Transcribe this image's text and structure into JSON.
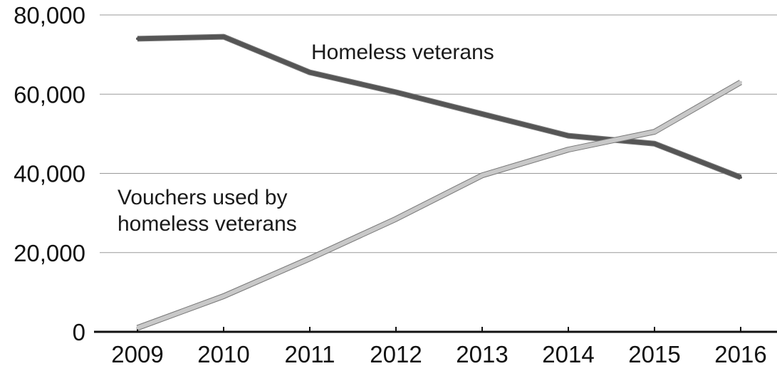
{
  "chart_data": {
    "type": "line",
    "title": "",
    "xlabel": "",
    "ylabel": "",
    "categories": [
      "2009",
      "2010",
      "2011",
      "2012",
      "2013",
      "2014",
      "2015",
      "2016"
    ],
    "y_ticks": [
      "0",
      "20,000",
      "40,000",
      "60,000",
      "80,000"
    ],
    "ylim": [
      0,
      80000
    ],
    "grid": true,
    "series": [
      {
        "name": "Homeless veterans",
        "label_lines": [
          "Homeless veterans"
        ],
        "color": "#555555",
        "values": [
          74000,
          74500,
          65500,
          60500,
          55000,
          49500,
          47500,
          39000
        ]
      },
      {
        "name": "Vouchers used by homeless veterans",
        "label_lines": [
          "Vouchers used by",
          "homeless veterans"
        ],
        "color": "#c8c8c8",
        "values": [
          1000,
          9000,
          18500,
          28500,
          39500,
          46000,
          50500,
          63000
        ]
      }
    ]
  }
}
